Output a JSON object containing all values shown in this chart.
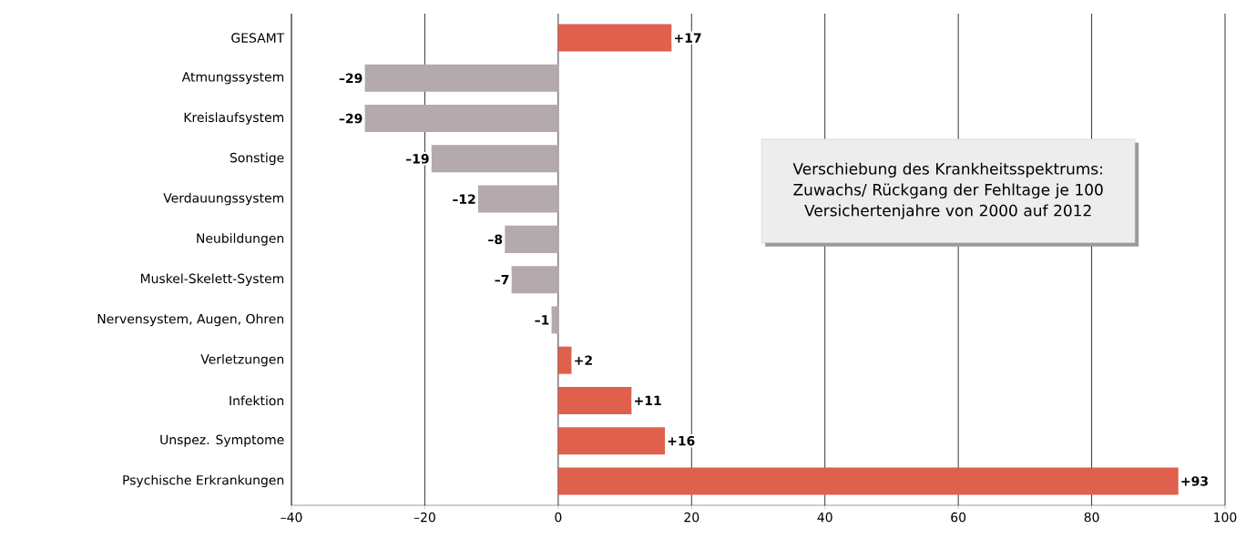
{
  "chart_data": {
    "type": "bar",
    "orientation": "horizontal",
    "categories": [
      "GESAMT",
      "Atmungssystem",
      "Kreislaufsystem",
      "Sonstige",
      "Verdauungssystem",
      "Neubildungen",
      "Muskel-Skelett-System",
      "Nervensystem, Augen, Ohren",
      "Verletzungen",
      "Infektion",
      "Unspez. Symptome",
      "Psychische Erkrankungen"
    ],
    "values": [
      17,
      -29,
      -29,
      -19,
      -12,
      -8,
      -7,
      -1,
      2,
      11,
      16,
      93
    ],
    "colors": [
      "#e0604e",
      "#b4a9ad",
      "#b4a9ad",
      "#b4a9ad",
      "#b4a9ad",
      "#b4a9ad",
      "#b4a9ad",
      "#b4a9ad",
      "#e0604e",
      "#e0604e",
      "#e0604e",
      "#e0604e"
    ],
    "value_labels": [
      "+17",
      "–29",
      "–29",
      "–19",
      "–12",
      "–8",
      "–7",
      "–1",
      "+2",
      "+11",
      "+16",
      "+93"
    ],
    "xlim": [
      -40,
      100
    ],
    "xticks": [
      {
        "value": -40,
        "label": "–40"
      },
      {
        "value": -20,
        "label": "–20"
      },
      0,
      20,
      40,
      60,
      80,
      100
    ],
    "grid": "x",
    "annotations": [
      "Verschiebung des Krankheitsspektrums: Zuwachs/ Rückgang der Fehltage je 100 Versichertenjahre von 2000 auf 2012"
    ]
  }
}
